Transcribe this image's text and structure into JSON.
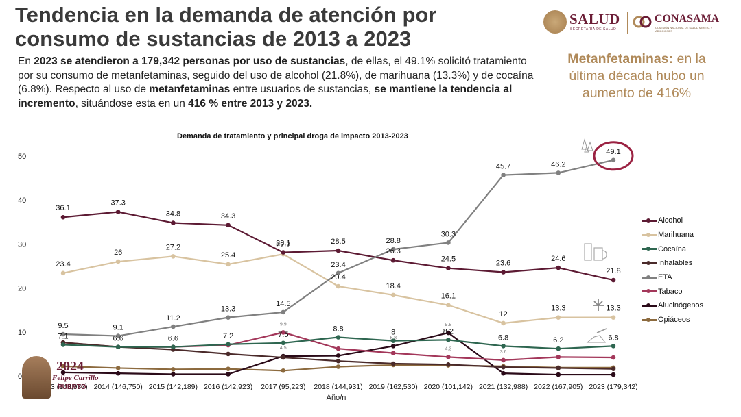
{
  "title": "Tendencia en la demanda de atención por consumo de sustancias de 2013 a 2023",
  "logos": {
    "salud": "SALUD",
    "salud_sub": "SECRETARÍA DE SALUD",
    "conasama": "CONASAMA",
    "conasama_sub": "COMISIÓN NACIONAL DE SALUD MENTAL Y ADICCIONES"
  },
  "paragraph": {
    "p1": "En ",
    "p2": "2023 se atendieron a 179,342 personas por uso de sustancias",
    "p3": ", de ellas, el 49.1% solicitó tratamiento por su consumo  de metanfetaminas, seguido del uso de alcohol (21.8%), de marihuana (13.3%) y de cocaína (6.8%). Respecto al uso de ",
    "p4": "metanfetaminas",
    "p5": " entre usuarios de sustancias, ",
    "p6": "se mantiene la tendencia al incremento",
    "p7": ", situándose esta en un ",
    "p8": "416 % entre 2013 y 2023."
  },
  "callout": {
    "bold": "Metanfetaminas:",
    "text": " en la última década hubo un aumento de 416%"
  },
  "badge": {
    "year": "2024",
    "name": "Felipe Carrillo",
    "sub": "PUERTO"
  },
  "colors": {
    "brand": "#6b1d36",
    "gold": "#b08a5a"
  },
  "chart_data": {
    "type": "line",
    "title": "Demanda de tratamiento y principal droga de impacto 2013-2023",
    "xlabel": "Año/n",
    "ylabel": "",
    "ylim": [
      0,
      50
    ],
    "yticks": [
      0,
      10,
      20,
      30,
      40,
      50
    ],
    "categories": [
      "2013 (143,937)",
      "2014 (146,750)",
      "2015 (142,189)",
      "2016 (142,923)",
      "2017 (95,223)",
      "2018 (144,931)",
      "2019 (162,530)",
      "2020 (101,142)",
      "2021 (132,988)",
      "2022 (167,905)",
      "2023 (179,342)"
    ],
    "legend_position": "right",
    "highlight": {
      "series": "ETA",
      "index": 10
    },
    "series": [
      {
        "name": "Alcohol",
        "color": "#5c1a33",
        "values": [
          36.1,
          37.3,
          34.8,
          34.3,
          28.1,
          28.5,
          26.3,
          24.5,
          23.6,
          24.6,
          21.8
        ],
        "labels": [
          "36.1",
          "37.3",
          "34.8",
          "34.3",
          "28.1",
          "28.5",
          "26.3",
          "24.5",
          "23.6",
          "24.6",
          "21.8"
        ]
      },
      {
        "name": "Marihuana",
        "color": "#d8c3a0",
        "values": [
          23.4,
          26,
          27.2,
          25.4,
          27.7,
          20.4,
          18.4,
          16.1,
          12,
          13.3,
          13.3
        ],
        "labels": [
          "23.4",
          "26",
          "27.2",
          "25.4",
          "27.7",
          "20.4",
          "18.4",
          "16.1",
          "12",
          "13.3",
          "13.3"
        ]
      },
      {
        "name": "Cocaína",
        "color": "#2e6650",
        "values": [
          7.1,
          6.6,
          6.6,
          7.2,
          7.5,
          8.8,
          8,
          8.2,
          6.8,
          6.2,
          6.8
        ],
        "labels": [
          "7.1",
          "6.6",
          "6.6",
          "7.2",
          "7.5",
          "8.8",
          "8",
          "8.2",
          "6.8",
          "6.2",
          "6.8"
        ]
      },
      {
        "name": "Inhalables",
        "color": "#4a2a2a",
        "values": [
          7.6,
          6.6,
          6.0,
          5.0,
          4.2,
          3.4,
          2.8,
          2.6,
          2.0,
          1.8,
          1.6
        ],
        "labels": [
          "",
          "",
          "",
          "",
          "",
          "",
          "",
          "",
          "",
          "",
          ""
        ]
      },
      {
        "name": "ETA",
        "color": "#808080",
        "values": [
          9.5,
          9.1,
          11.2,
          13.3,
          14.5,
          23.4,
          28.8,
          30.3,
          45.7,
          46.2,
          49.1
        ],
        "labels": [
          "9.5",
          "9.1",
          "11.2",
          "13.3",
          "14.5",
          "23.4",
          "28.8",
          "30.3",
          "45.7",
          "46.2",
          "49.1"
        ]
      },
      {
        "name": "Tabaco",
        "color": "#a3375a",
        "values": [
          7.6,
          6.6,
          6.6,
          7.0,
          9.9,
          6.2,
          5.2,
          4.3,
          3.6,
          4.3,
          4.2
        ],
        "labels": [
          "",
          "",
          "",
          "",
          "9.9",
          "",
          "",
          "4.3",
          "3.6",
          "",
          ""
        ]
      },
      {
        "name": "Alucinógenos",
        "color": "#2a0a18",
        "values": [
          0.8,
          0.6,
          0.4,
          0.4,
          4.5,
          4.6,
          6.8,
          9.8,
          0.6,
          0.3,
          0.3
        ],
        "labels": [
          "",
          "",
          "",
          "",
          "4.5",
          "",
          "6.8",
          "9.8",
          "",
          "",
          ""
        ]
      },
      {
        "name": "Opiáceos",
        "color": "#8c6a3e",
        "values": [
          2.2,
          1.8,
          1.5,
          1.6,
          1.2,
          2.1,
          2.5,
          2.4,
          2.2,
          1.9,
          1.9
        ],
        "labels": [
          "",
          "",
          "",
          "",
          "",
          "",
          "",
          "",
          "",
          "",
          ""
        ]
      }
    ]
  }
}
